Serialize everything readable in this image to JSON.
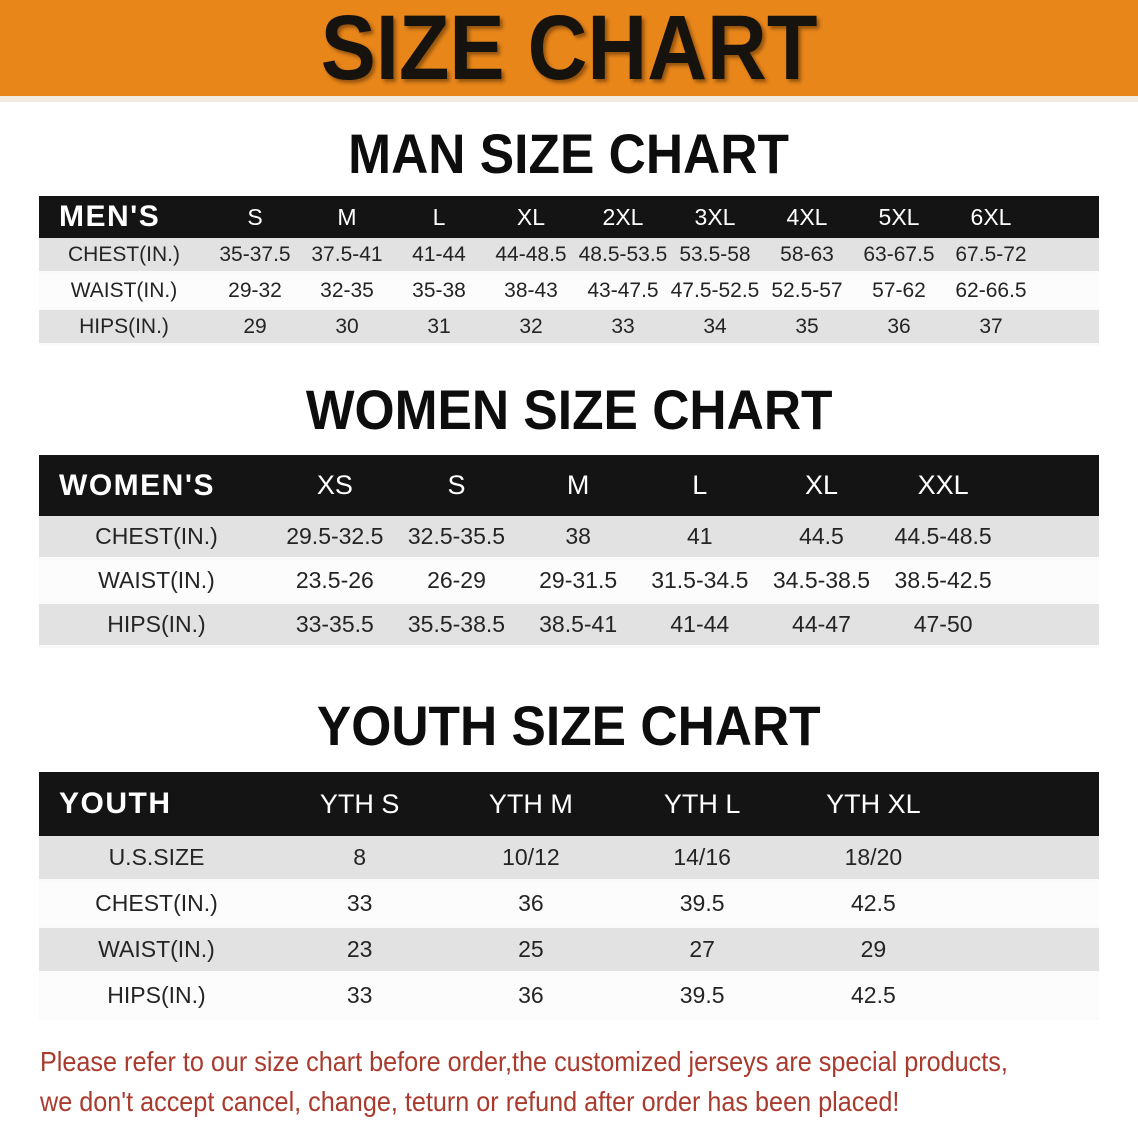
{
  "banner": {
    "title": "SIZE CHART"
  },
  "sections": [
    {
      "heading": "MAN SIZE CHART",
      "table": {
        "header_label": "MEN'S",
        "columns": [
          "S",
          "M",
          "L",
          "XL",
          "2XL",
          "3XL",
          "4XL",
          "5XL",
          "6XL"
        ],
        "rows": [
          {
            "label": "CHEST(IN.)",
            "values": [
              "35-37.5",
              "37.5-41",
              "41-44",
              "44-48.5",
              "48.5-53.5",
              "53.5-58",
              "58-63",
              "63-67.5",
              "67.5-72"
            ]
          },
          {
            "label": "WAIST(IN.)",
            "values": [
              "29-32",
              "32-35",
              "35-38",
              "38-43",
              "43-47.5",
              "47.5-52.5",
              "52.5-57",
              "57-62",
              "62-66.5"
            ]
          },
          {
            "label": "HIPS(IN.)",
            "values": [
              "29",
              "30",
              "31",
              "32",
              "33",
              "34",
              "35",
              "36",
              "37"
            ]
          }
        ]
      }
    },
    {
      "heading": "WOMEN SIZE CHART",
      "table": {
        "header_label": "WOMEN'S",
        "columns": [
          "XS",
          "S",
          "M",
          "L",
          "XL",
          "XXL"
        ],
        "rows": [
          {
            "label": "CHEST(IN.)",
            "values": [
              "29.5-32.5",
              "32.5-35.5",
              "38",
              "41",
              "44.5",
              "44.5-48.5"
            ]
          },
          {
            "label": "WAIST(IN.)",
            "values": [
              "23.5-26",
              "26-29",
              "29-31.5",
              "31.5-34.5",
              "34.5-38.5",
              "38.5-42.5"
            ]
          },
          {
            "label": "HIPS(IN.)",
            "values": [
              "33-35.5",
              "35.5-38.5",
              "38.5-41",
              "41-44",
              "44-47",
              "47-50"
            ]
          }
        ]
      }
    },
    {
      "heading": "YOUTH SIZE CHART",
      "table": {
        "header_label": "YOUTH",
        "columns": [
          "YTH S",
          "YTH M",
          "YTH L",
          "YTH XL"
        ],
        "rows": [
          {
            "label": "U.S.SIZE",
            "values": [
              "8",
              "10/12",
              "14/16",
              "18/20"
            ]
          },
          {
            "label": "CHEST(IN.)",
            "values": [
              "33",
              "36",
              "39.5",
              "42.5"
            ]
          },
          {
            "label": "WAIST(IN.)",
            "values": [
              "23",
              "25",
              "27",
              "29"
            ]
          },
          {
            "label": "HIPS(IN.)",
            "values": [
              "33",
              "36",
              "39.5",
              "42.5"
            ]
          }
        ]
      }
    }
  ],
  "footer": {
    "lines": [
      "Please refer to our size chart before order,the customized jerseys are special products,",
      "we don't accept cancel, change, teturn or refund after order has been placed!"
    ]
  },
  "colors": {
    "banner_bg": "#E8861A",
    "table_header_bg": "#141414",
    "row_stripe": "#E2E2E2",
    "row_plain": "#FCFCFC",
    "note_text": "#A93B2E"
  }
}
